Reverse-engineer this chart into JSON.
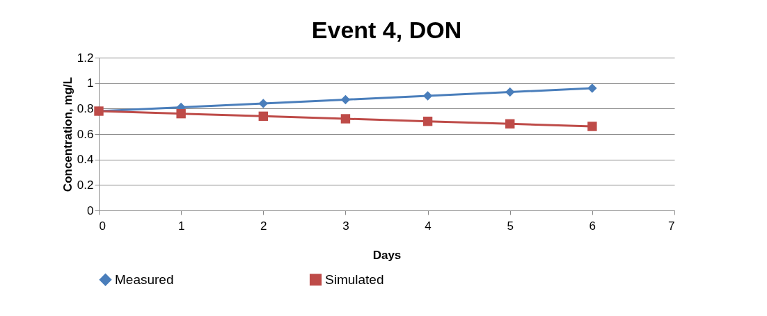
{
  "chart_data": {
    "type": "line",
    "title": "Event 4, DON",
    "xlabel": "Days",
    "ylabel": "Concentration, mg/L",
    "x": [
      0,
      1,
      2,
      3,
      4,
      5,
      6
    ],
    "series": [
      {
        "name": "Measured",
        "color": "#4a7ebb",
        "marker": "diamond",
        "values": [
          0.78,
          0.81,
          0.84,
          0.87,
          0.9,
          0.93,
          0.96
        ]
      },
      {
        "name": "Simulated",
        "color": "#be4b48",
        "marker": "square",
        "values": [
          0.78,
          0.76,
          0.74,
          0.72,
          0.7,
          0.68,
          0.66
        ]
      }
    ],
    "xlim": [
      0,
      7
    ],
    "xticks": [
      0,
      1,
      2,
      3,
      4,
      5,
      6,
      7
    ],
    "ylim": [
      0,
      1.2
    ],
    "yticks": [
      0,
      0.2,
      0.4,
      0.6,
      0.8,
      1,
      1.2
    ],
    "grid": "y",
    "legend": "bottom"
  }
}
